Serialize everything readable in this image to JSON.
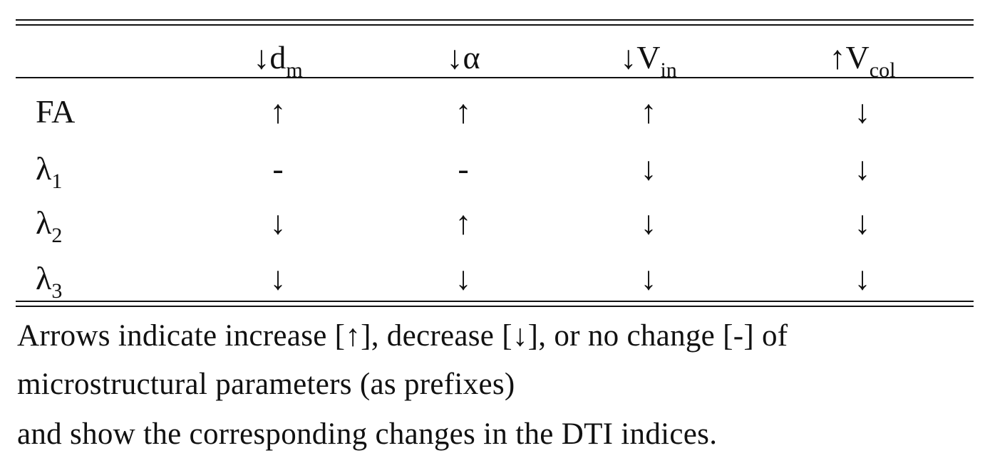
{
  "table": {
    "columns": [
      {
        "arrow": "↓",
        "name": "d",
        "sub": "m"
      },
      {
        "arrow": "↓",
        "name": "α"
      },
      {
        "arrow": "↓",
        "name": "V",
        "sub": "in"
      },
      {
        "arrow": "↑",
        "name": "V",
        "sub": "col"
      }
    ],
    "rows": [
      {
        "label": {
          "name": "FA"
        },
        "cells": [
          "↑",
          "↑",
          "↑",
          "↓"
        ]
      },
      {
        "label": {
          "name": "λ",
          "sub": "1"
        },
        "cells": [
          "-",
          "-",
          "↓",
          "↓"
        ]
      },
      {
        "label": {
          "name": "λ",
          "sub": "2"
        },
        "cells": [
          "↓",
          "↑",
          "↓",
          "↓"
        ]
      },
      {
        "label": {
          "name": "λ",
          "sub": "3"
        },
        "cells": [
          "↓",
          "↓",
          "↓",
          "↓"
        ]
      }
    ]
  },
  "caption": [
    "Arrows indicate increase [↑], decrease [↓], or no change [-] of",
    "microstructural parameters (as prefixes)",
    "and show the corresponding changes in the DTI indices."
  ]
}
